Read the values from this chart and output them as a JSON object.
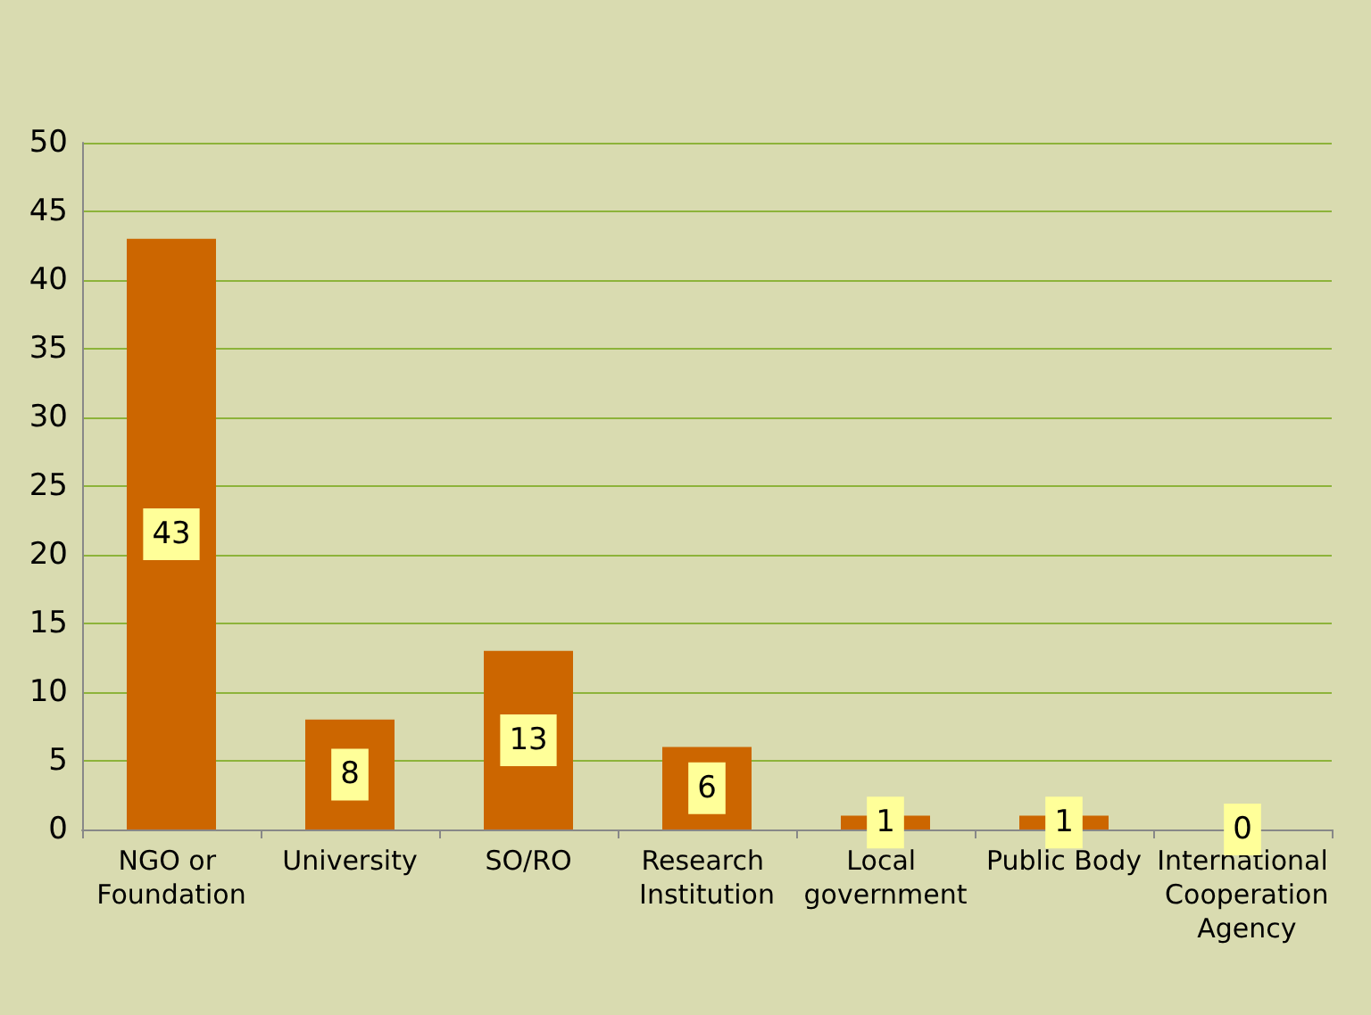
{
  "chart_data": {
    "type": "bar",
    "categories": [
      "NGO or Foundation",
      "University",
      "SO/RO",
      "Research Institution",
      "Local government",
      "Public Body",
      "International Cooperation Agency"
    ],
    "values": [
      43,
      8,
      13,
      6,
      1,
      1,
      0
    ],
    "color": "#cc6600",
    "ylim": [
      0,
      50
    ],
    "yticks": [
      0,
      5,
      10,
      15,
      20,
      25,
      30,
      35,
      40,
      45,
      50
    ],
    "grid": "y",
    "data_labels": true
  }
}
